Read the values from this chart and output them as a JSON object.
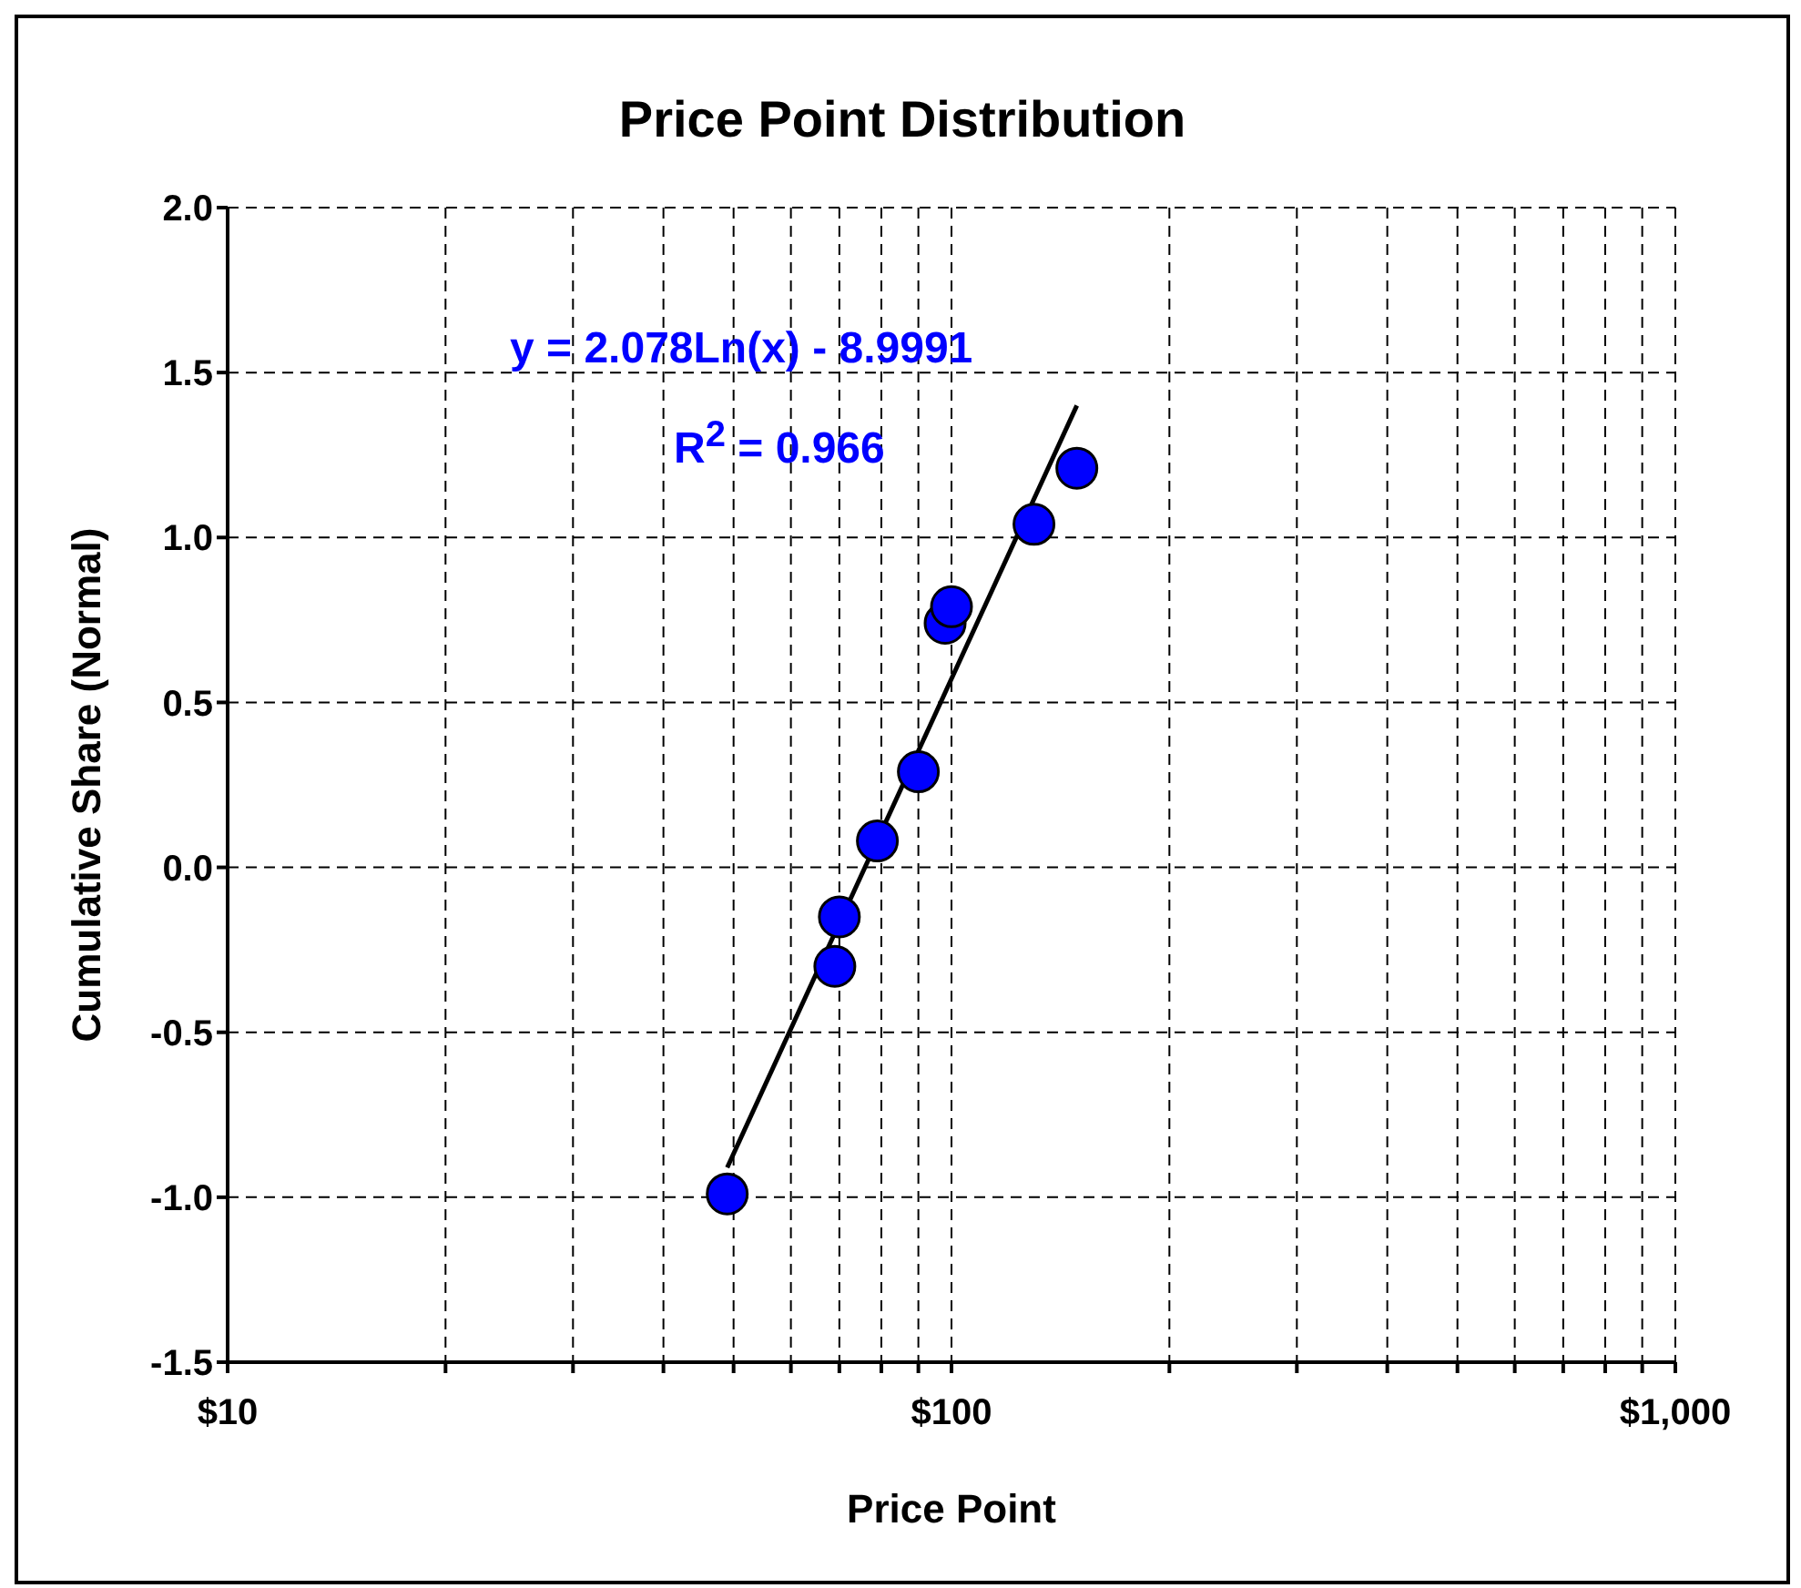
{
  "chart_data": {
    "type": "scatter",
    "title": "Price Point Distribution",
    "xlabel": "Price Point",
    "ylabel": "Cumulative Share (Normal)",
    "log": "x",
    "grid": true,
    "line_style": "dashed",
    "legend": false,
    "xlim": [
      10,
      1000
    ],
    "xticks": [
      {
        "value": 10,
        "label": "$10"
      },
      {
        "value": 20,
        "label": null
      },
      {
        "value": 30,
        "label": null
      },
      {
        "value": 40,
        "label": null
      },
      {
        "value": 50,
        "label": null
      },
      {
        "value": 60,
        "label": null
      },
      {
        "value": 70,
        "label": null
      },
      {
        "value": 80,
        "label": null
      },
      {
        "value": 90,
        "label": null
      },
      {
        "value": 100,
        "label": "$100"
      },
      {
        "value": 200,
        "label": null
      },
      {
        "value": 300,
        "label": null
      },
      {
        "value": 400,
        "label": null
      },
      {
        "value": 500,
        "label": null
      },
      {
        "value": 600,
        "label": null
      },
      {
        "value": 700,
        "label": null
      },
      {
        "value": 800,
        "label": null
      },
      {
        "value": 900,
        "label": null
      },
      {
        "value": 1000,
        "label": "$1,000"
      }
    ],
    "ylim": [
      -1.5,
      2.0
    ],
    "yticks": [
      {
        "value": -1.5,
        "label": "-1.5"
      },
      {
        "value": -1,
        "label": "-1.0"
      },
      {
        "value": -0.5,
        "label": "-0.5"
      },
      {
        "value": 0,
        "label": "0.0"
      },
      {
        "value": 0.5,
        "label": "0.5"
      },
      {
        "value": 1,
        "label": "1.0"
      },
      {
        "value": 1.5,
        "label": "1.5"
      },
      {
        "value": 2,
        "label": "2.0"
      }
    ],
    "series": [
      {
        "type": "scatter",
        "color": "#0000ff",
        "marker": "circle",
        "x": [
          49,
          69,
          70,
          79,
          90,
          98,
          100,
          130,
          149
        ],
        "values": [
          -0.99,
          -0.3,
          -0.15,
          0.08,
          0.29,
          0.74,
          0.79,
          1.04,
          1.21
        ]
      },
      {
        "type": "line",
        "color": "#000000",
        "marker": "none",
        "line_style": "solid",
        "x": [
          49,
          149
        ],
        "values": [
          -0.91,
          1.4
        ]
      }
    ],
    "annotations": [
      "y = 2.078Ln(x) - 8.9991",
      "R$^{2}$ = 0.966"
    ]
  }
}
